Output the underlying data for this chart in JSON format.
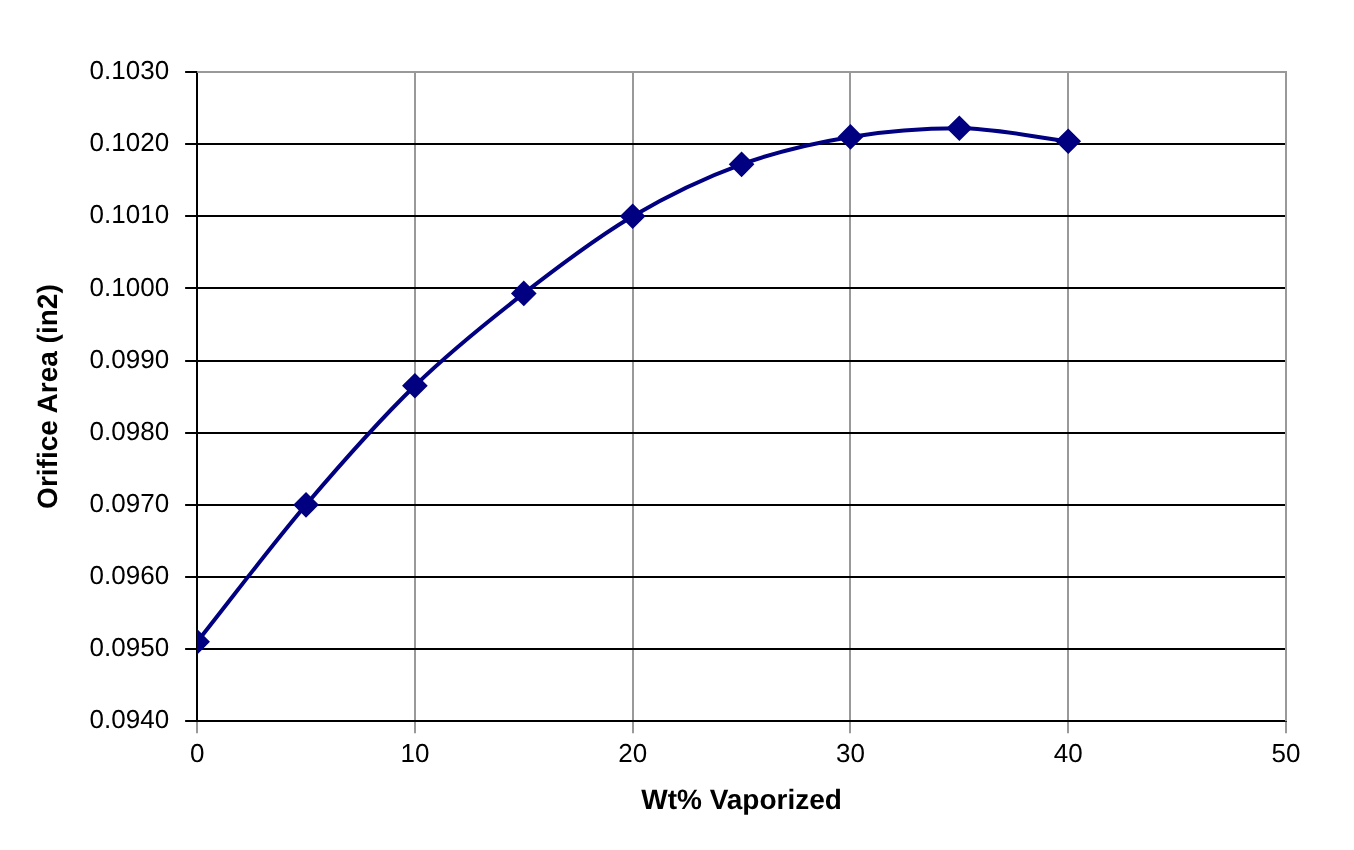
{
  "chart_data": {
    "type": "line",
    "xlabel": "Wt% Vaporized",
    "ylabel": "Orifice Area (in2)",
    "x": [
      0,
      5,
      10,
      15,
      20,
      25,
      30,
      35,
      40
    ],
    "series": [
      {
        "color": "#000080",
        "values": [
          0.0951,
          0.097,
          0.09865,
          0.09993,
          0.101,
          0.10172,
          0.1021,
          0.10222,
          0.10204
        ]
      }
    ],
    "xlim": [
      0,
      50
    ],
    "xticks": [
      0,
      10,
      20,
      30,
      40,
      50
    ],
    "ylim": [
      0.094,
      0.103
    ],
    "yticks": [
      {
        "value": 0.094,
        "label": "0.0940"
      },
      {
        "value": 0.095,
        "label": "0.0950"
      },
      {
        "value": 0.096,
        "label": "0.0960"
      },
      {
        "value": 0.097,
        "label": "0.0970"
      },
      {
        "value": 0.098,
        "label": "0.0980"
      },
      {
        "value": 0.099,
        "label": "0.0990"
      },
      {
        "value": 0.1,
        "label": "0.1000"
      },
      {
        "value": 0.101,
        "label": "0.1010"
      },
      {
        "value": 0.102,
        "label": "0.1020"
      },
      {
        "value": 0.103,
        "label": "0.1030"
      }
    ],
    "grid": true,
    "marker": "diamond",
    "legend": false
  }
}
